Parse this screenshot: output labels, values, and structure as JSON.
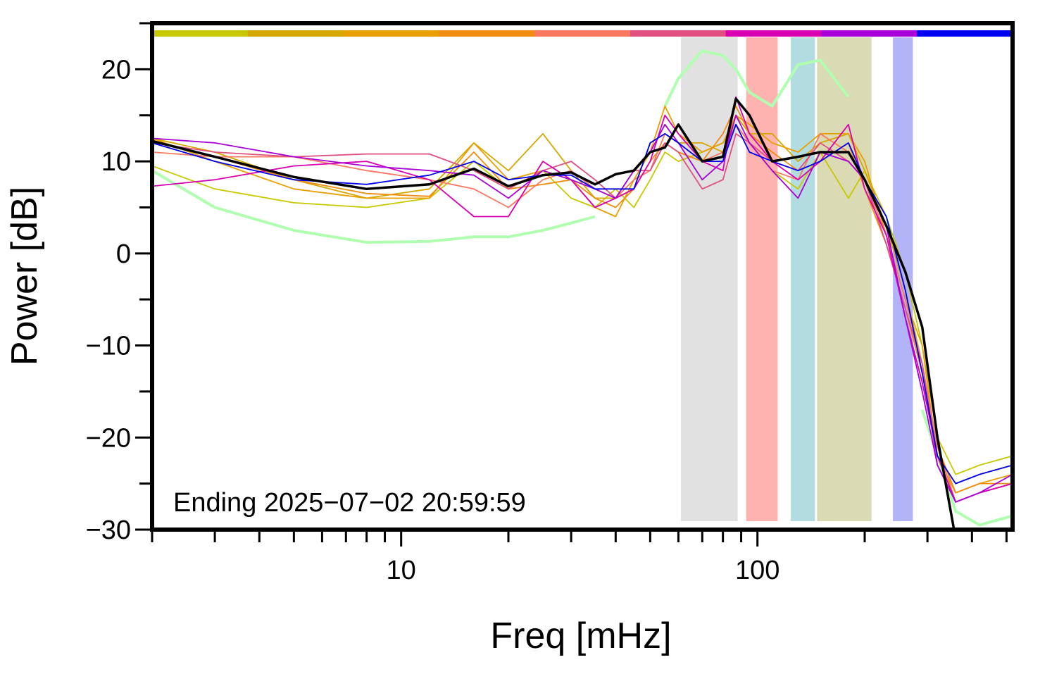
{
  "chart_data": {
    "type": "line",
    "x_label": "Freq [mHz]",
    "y_label": "Power [dB]",
    "annotation": "Ending 2025−07−02 20:59:59",
    "log_x": true,
    "xlim": [
      2,
      520
    ],
    "ylim": [
      -30,
      25
    ],
    "xticks": [
      10,
      100
    ],
    "xminor_ticks": [
      2,
      3,
      4,
      5,
      6,
      7,
      8,
      9,
      20,
      30,
      40,
      50,
      60,
      70,
      80,
      90,
      200,
      300,
      400,
      500
    ],
    "yticks": [
      20,
      10,
      0,
      {
        "value": -10,
        "label": "−10"
      },
      {
        "value": -20,
        "label": "−20"
      },
      {
        "value": -30,
        "label": "−30"
      }
    ],
    "yminor_ticks": [
      25,
      15,
      5,
      -5,
      -15,
      -25
    ],
    "bands": [
      {
        "x0": 61,
        "x1": 88,
        "color": "#e1e1e1"
      },
      {
        "x0": 93,
        "x1": 114,
        "color": "#ffb3b0"
      },
      {
        "x0": 124,
        "x1": 145,
        "color": "#b3dce0"
      },
      {
        "x0": 147,
        "x1": 209,
        "color": "#dadab4"
      },
      {
        "x0": 240,
        "x1": 273,
        "color": "#b3b3f8"
      }
    ],
    "x": [
      2,
      3,
      5,
      8,
      12,
      16,
      20,
      25,
      30,
      35,
      40,
      45,
      50,
      55,
      60,
      70,
      80,
      87,
      95,
      110,
      130,
      150,
      180,
      200,
      230,
      260,
      290,
      320,
      360,
      420,
      520
    ],
    "series": [
      {
        "color": "#b0ffb0",
        "width": 4,
        "values": [
          9,
          5,
          2.5,
          1.2,
          1.3,
          1.8,
          1.8,
          2.5,
          3.3,
          4,
          null,
          null,
          null,
          16,
          19,
          22,
          21.5,
          20,
          17.5,
          16,
          20.5,
          21,
          17,
          null,
          null,
          null,
          -17,
          -22,
          -28,
          -29.5,
          -28.5
        ]
      },
      {
        "color": "#c8c800",
        "width": 1.8,
        "values": [
          9.5,
          7,
          5.5,
          5,
          6,
          10,
          7,
          9,
          6,
          5,
          7,
          5,
          8,
          11,
          10,
          11,
          12,
          14,
          12,
          9,
          7,
          11,
          6,
          9,
          4,
          -2,
          -10,
          -20,
          -24,
          -23,
          -22
        ]
      },
      {
        "color": "#d4a800",
        "width": 1.8,
        "values": [
          12.5,
          11,
          8,
          6,
          7,
          12,
          9,
          13,
          9,
          6,
          6,
          7,
          12,
          13,
          12,
          12,
          11,
          15,
          13,
          13,
          10,
          12,
          13,
          9,
          3,
          -4,
          -12,
          -22,
          -25,
          -24,
          -23
        ]
      },
      {
        "color": "#e8a000",
        "width": 1.8,
        "values": [
          12.5,
          10,
          7,
          6,
          6,
          12,
          8,
          9,
          8,
          5,
          4,
          8,
          11,
          16,
          13,
          11,
          12,
          15,
          14,
          12,
          11,
          13,
          13,
          10,
          2,
          -5,
          -10,
          -22,
          -26,
          -25,
          -24
        ]
      },
      {
        "color": "#f08c10",
        "width": 1.8,
        "values": [
          12.3,
          10.5,
          8,
          6.5,
          6.2,
          11,
          7,
          7.5,
          8,
          6,
          5,
          7,
          10,
          12,
          11,
          10,
          13,
          16,
          13,
          11,
          9,
          10,
          12,
          7,
          1,
          -6,
          -13,
          -21,
          -26,
          -25,
          -25
        ]
      },
      {
        "color": "#f87860",
        "width": 1.8,
        "values": [
          11,
          10.5,
          10.5,
          9,
          8,
          7,
          5,
          8,
          9,
          7,
          6,
          8,
          9,
          13,
          12,
          10,
          11,
          14,
          12,
          9,
          8,
          13,
          11,
          8,
          2,
          -5,
          -12,
          -21,
          -27,
          -26,
          -25
        ]
      },
      {
        "color": "#e05080",
        "width": 1.8,
        "values": [
          12,
          11,
          10.5,
          10.8,
          10.8,
          9,
          7,
          9,
          10,
          8,
          6,
          9,
          9,
          12,
          11,
          7,
          8,
          13,
          12,
          10,
          9,
          12,
          10,
          8,
          1,
          -6,
          -12,
          -23,
          -27,
          -26,
          -25
        ]
      },
      {
        "color": "#d800b0",
        "width": 1.8,
        "values": [
          7.3,
          8,
          9.5,
          10,
          8,
          4,
          4,
          10,
          8,
          5,
          6,
          7,
          10,
          15,
          13,
          10,
          9,
          17,
          13,
          10,
          8,
          10,
          14,
          7,
          2,
          -7,
          -14,
          -22,
          -27,
          -26,
          -25
        ]
      },
      {
        "color": "#a800d8",
        "width": 1.8,
        "values": [
          12.5,
          12,
          10.5,
          9.5,
          9,
          8.5,
          6,
          9,
          8,
          7,
          6,
          9,
          11,
          14,
          12,
          8,
          10,
          15,
          12,
          9,
          6,
          11,
          10,
          8,
          3,
          -7,
          -15,
          -23,
          -27,
          -26,
          -24
        ]
      },
      {
        "color": "#0000f0",
        "width": 1.8,
        "values": [
          12,
          10,
          8,
          7.5,
          8.5,
          10,
          8,
          8.5,
          8.5,
          7,
          7,
          7,
          12,
          13,
          12,
          10,
          10,
          14,
          11,
          10,
          9,
          10,
          12,
          8,
          4,
          -4,
          -13,
          -22,
          -25,
          -24,
          -23
        ]
      },
      {
        "color": "#000000",
        "width": 3.5,
        "values": [
          12.2,
          10.5,
          8.3,
          7,
          7.5,
          9.2,
          7.3,
          8.5,
          8.8,
          7.5,
          8.6,
          9,
          11,
          11.5,
          14,
          10,
          10.5,
          16.8,
          15,
          10,
          10.5,
          11,
          11,
          8,
          3,
          -2,
          -8,
          -20,
          -31,
          null,
          null
        ]
      }
    ]
  }
}
